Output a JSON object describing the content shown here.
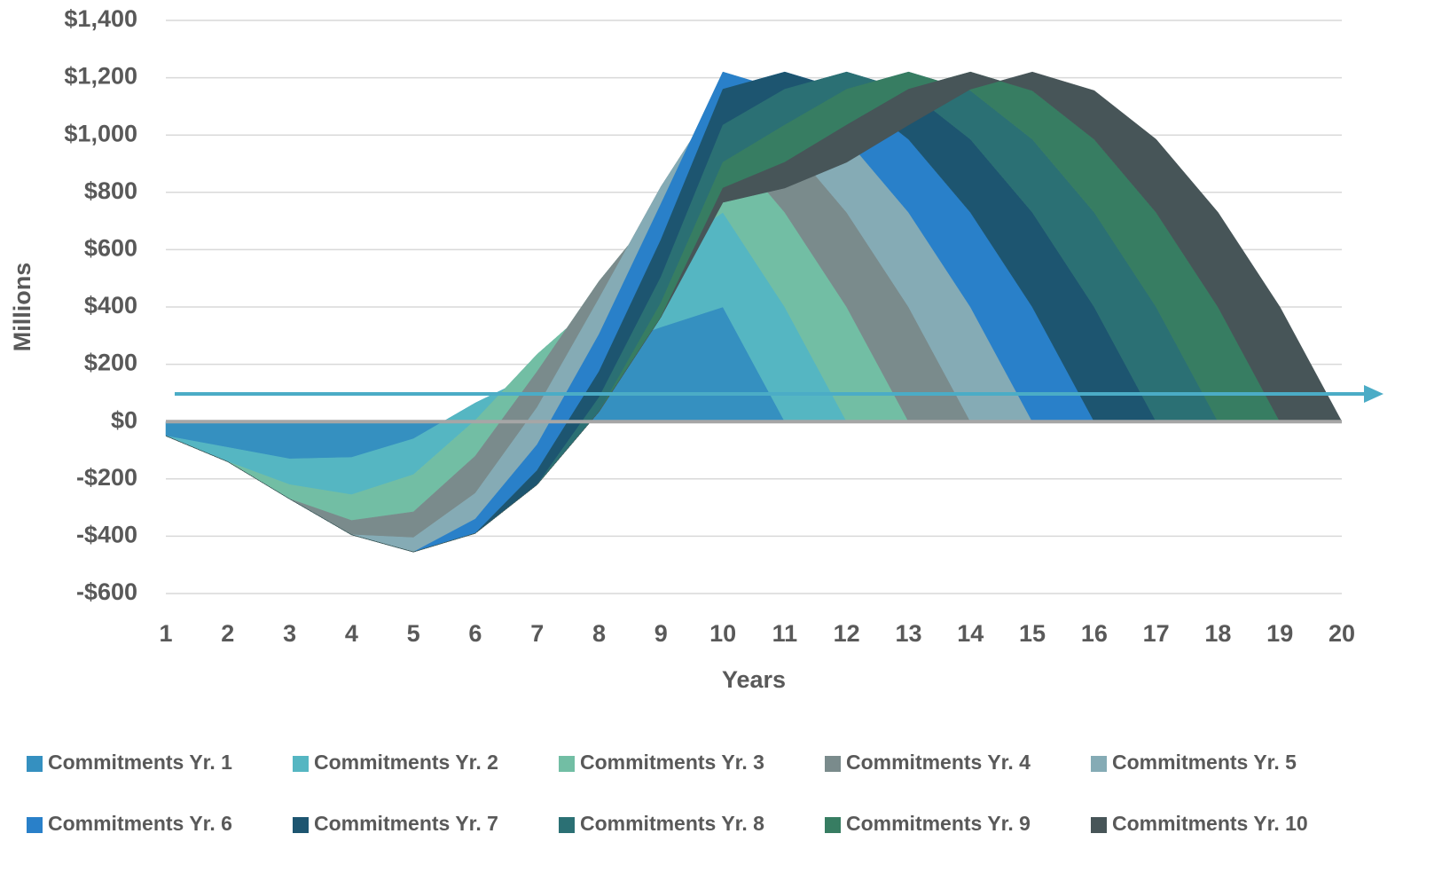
{
  "chart_data": {
    "type": "stacked-area",
    "y_label": "Millions",
    "x_label": "Years",
    "x": [
      1,
      2,
      3,
      4,
      5,
      6,
      7,
      8,
      9,
      10,
      11,
      12,
      13,
      14,
      15,
      16,
      17,
      18,
      19,
      20
    ],
    "ylim": [
      -600,
      1400
    ],
    "yticks": [
      {
        "value": -600,
        "label": "-$600"
      },
      {
        "value": -400,
        "label": "-$400"
      },
      {
        "value": -200,
        "label": "-$200"
      },
      {
        "value": 0,
        "label": "$0"
      },
      {
        "value": 200,
        "label": "$200"
      },
      {
        "value": 400,
        "label": "$400"
      },
      {
        "value": 600,
        "label": "$600"
      },
      {
        "value": 800,
        "label": "$800"
      },
      {
        "value": 1000,
        "label": "$1,000"
      },
      {
        "value": 1200,
        "label": "$1,200"
      },
      {
        "value": 1400,
        "label": "$1,400"
      }
    ],
    "grid": true,
    "legend": "bottom",
    "series": [
      {
        "name": "Commitments Yr. 1",
        "color": "#3590c0",
        "values": [
          -50,
          -90,
          -130,
          -125,
          -60,
          65,
          170,
          255,
          330,
          400,
          0,
          0,
          0,
          0,
          0,
          0,
          0,
          0,
          0,
          0
        ]
      },
      {
        "name": "Commitments Yr. 2",
        "color": "#55b6c2",
        "values": [
          0,
          -50,
          -90,
          -130,
          -125,
          -60,
          65,
          170,
          255,
          330,
          400,
          0,
          0,
          0,
          0,
          0,
          0,
          0,
          0,
          0
        ]
      },
      {
        "name": "Commitments Yr. 3",
        "color": "#72bea4",
        "values": [
          0,
          0,
          -50,
          -90,
          -130,
          -125,
          -60,
          65,
          170,
          255,
          330,
          400,
          0,
          0,
          0,
          0,
          0,
          0,
          0,
          0
        ]
      },
      {
        "name": "Commitments Yr. 4",
        "color": "#7a8b8c",
        "values": [
          0,
          0,
          0,
          -50,
          -90,
          -130,
          -125,
          -60,
          65,
          170,
          255,
          330,
          400,
          0,
          0,
          0,
          0,
          0,
          0,
          0
        ]
      },
      {
        "name": "Commitments Yr. 5",
        "color": "#85abb5",
        "values": [
          0,
          0,
          0,
          0,
          -50,
          -90,
          -130,
          -125,
          -60,
          65,
          170,
          255,
          330,
          400,
          0,
          0,
          0,
          0,
          0,
          0
        ]
      },
      {
        "name": "Commitments Yr. 6",
        "color": "#2980c9",
        "values": [
          0,
          0,
          0,
          0,
          0,
          -50,
          -90,
          -130,
          -125,
          -60,
          65,
          170,
          255,
          330,
          400,
          0,
          0,
          0,
          0,
          0
        ]
      },
      {
        "name": "Commitments Yr. 7",
        "color": "#1d5570",
        "values": [
          0,
          0,
          0,
          0,
          0,
          0,
          -50,
          -90,
          -130,
          -125,
          -60,
          65,
          170,
          255,
          330,
          400,
          0,
          0,
          0,
          0
        ]
      },
      {
        "name": "Commitments Yr. 8",
        "color": "#2b7074",
        "values": [
          0,
          0,
          0,
          0,
          0,
          0,
          0,
          -50,
          -90,
          -130,
          -125,
          -60,
          65,
          170,
          255,
          330,
          400,
          0,
          0,
          0
        ]
      },
      {
        "name": "Commitments Yr. 9",
        "color": "#377d62",
        "values": [
          0,
          0,
          0,
          0,
          0,
          0,
          0,
          0,
          -50,
          -90,
          -130,
          -125,
          -60,
          65,
          170,
          255,
          330,
          400,
          0,
          0
        ]
      },
      {
        "name": "Commitments Yr. 10",
        "color": "#475558",
        "values": [
          0,
          0,
          0,
          0,
          0,
          0,
          0,
          0,
          0,
          -50,
          -90,
          -130,
          -125,
          -60,
          65,
          170,
          255,
          330,
          400,
          0
        ]
      }
    ]
  }
}
